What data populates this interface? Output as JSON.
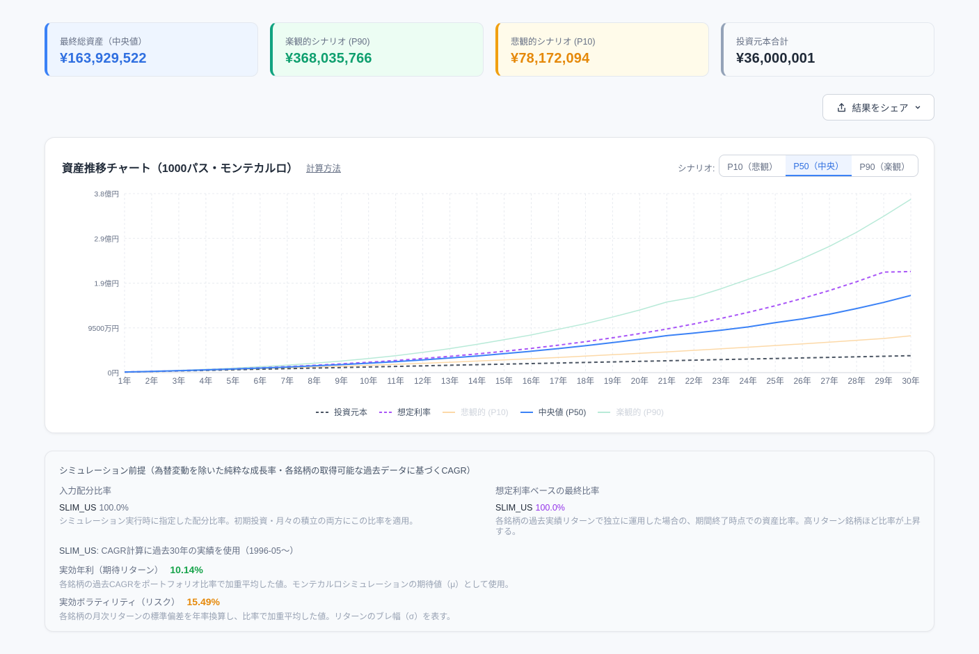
{
  "stats": [
    {
      "label": "最終総資産（中央値）",
      "value": "¥163,929,522",
      "kind": "median"
    },
    {
      "label": "楽観的シナリオ (P90)",
      "value": "¥368,035,766",
      "kind": "opt"
    },
    {
      "label": "悲観的シナリオ (P10)",
      "value": "¥78,172,094",
      "kind": "pes"
    },
    {
      "label": "投資元本合計",
      "value": "¥36,000,001",
      "kind": "total"
    }
  ],
  "share_button": {
    "label": "結果をシェア",
    "icon": "share-upload-icon",
    "chevron": "chevron-down-icon"
  },
  "chart": {
    "title": "資産推移チャート（1000パス・モンテカルロ）",
    "calc_link": "計算方法",
    "scenario_label": "シナリオ:",
    "scenario_options": [
      "P10（悲観）",
      "P50（中央）",
      "P90（楽観）"
    ],
    "scenario_selected": "P50（中央）"
  },
  "chart_data": {
    "type": "line",
    "x": [
      "1年",
      "2年",
      "3年",
      "4年",
      "5年",
      "6年",
      "7年",
      "8年",
      "9年",
      "10年",
      "11年",
      "12年",
      "13年",
      "14年",
      "15年",
      "16年",
      "17年",
      "18年",
      "19年",
      "20年",
      "21年",
      "22年",
      "23年",
      "24年",
      "25年",
      "26年",
      "27年",
      "28年",
      "29年",
      "30年"
    ],
    "y_ticks": [
      "0円",
      "9500万円",
      "1.9億円",
      "2.9億円",
      "3.8億円"
    ],
    "y_tick_values": [
      0,
      95000000,
      190000000,
      285000000,
      380000000
    ],
    "ylim": [
      0,
      380000000
    ],
    "grid": true,
    "legend_placement": "bottom",
    "series": [
      {
        "name": "投資元本",
        "color": "#4b5563",
        "dash": true,
        "dim": false,
        "values": [
          1.2,
          2.4,
          3.6,
          4.8,
          6.0,
          7.2,
          8.4,
          9.6,
          10.8,
          12.0,
          13.2,
          14.4,
          15.6,
          16.8,
          18.0,
          19.2,
          20.4,
          21.6,
          22.8,
          24.0,
          25.2,
          26.4,
          27.6,
          28.8,
          30.0,
          31.2,
          32.4,
          33.6,
          34.8,
          36.0
        ]
      },
      {
        "name": "想定利率",
        "color": "#a855f7",
        "dash": true,
        "dim": false,
        "values": [
          1.3,
          2.6,
          4.2,
          6.0,
          8.0,
          10.2,
          12.7,
          15.5,
          18.6,
          22.0,
          25.8,
          30.0,
          34.6,
          39.7,
          45.3,
          51.5,
          58.3,
          65.7,
          73.9,
          82.8,
          92.6,
          103.3,
          115.0,
          127.9,
          142.0,
          157.5,
          174.4,
          193.0,
          213.3,
          214.5
        ]
      },
      {
        "name": "悲観的 (P10)",
        "color": "#fcd9a8",
        "dash": false,
        "dim": true,
        "values": [
          1.2,
          2.3,
          3.6,
          5.0,
          6.5,
          8.1,
          9.8,
          11.6,
          13.5,
          15.5,
          17.6,
          19.8,
          22.1,
          24.5,
          27.0,
          29.6,
          32.3,
          35.1,
          38.0,
          41.0,
          44.1,
          47.3,
          50.6,
          54.0,
          57.5,
          61.1,
          64.8,
          68.6,
          72.5,
          78.2
        ]
      },
      {
        "name": "中央値 (P50)",
        "color": "#3b82f6",
        "dash": false,
        "dim": false,
        "values": [
          1.3,
          2.6,
          4.1,
          5.8,
          7.6,
          9.6,
          11.8,
          14.3,
          17.0,
          20.0,
          23.3,
          27.0,
          31.0,
          35.4,
          40.2,
          45.4,
          51.0,
          57.1,
          63.7,
          70.8,
          78.5,
          84.0,
          90.0,
          97.0,
          106.0,
          114.0,
          124.0,
          136.0,
          149.0,
          163.9
        ]
      },
      {
        "name": "楽観的 (P90)",
        "color": "#b8ead8",
        "dash": false,
        "dim": true,
        "values": [
          1.4,
          3.0,
          4.8,
          7.0,
          9.5,
          12.5,
          16.0,
          20.0,
          24.5,
          30.0,
          36.0,
          43.0,
          51.0,
          60.0,
          70.0,
          80.0,
          92.0,
          104.0,
          118.0,
          133.0,
          150.0,
          160.0,
          178.0,
          198.0,
          218.0,
          242.0,
          268.0,
          298.0,
          332.0,
          368.0
        ]
      }
    ],
    "value_unit_in_series": "百万円"
  },
  "info": {
    "title": "シミュレーション前提（為替変動を除いた純粋な成長率・各銘柄の取得可能な過去データに基づくCAGR）",
    "left": {
      "heading": "入力配分比率",
      "name": "SLIM_US",
      "pct": "100.0%",
      "desc": "シミュレーション実行時に指定した配分比率。初期投資・月々の積立の両方にこの比率を適用。"
    },
    "right": {
      "heading": "想定利率ベースの最終比率",
      "name": "SLIM_US",
      "pct": "100.0%",
      "desc": "各銘柄の過去実績リターンで独立に運用した場合の、期間終了時点での資産比率。高リターン銘柄ほど比率が上昇する。"
    },
    "cagr_name": "SLIM_US",
    "cagr_note": ": CAGR計算に過去30年の実績を使用（1996-05〜）",
    "return_label": "実効年利（期待リターン）",
    "return_value": "10.14%",
    "return_desc": "各銘柄の過去CAGRをポートフォリオ比率で加重平均した値。モンテカルロシミュレーションの期待値（μ）として使用。",
    "vol_label": "実効ボラティリティ（リスク）",
    "vol_value": "15.49%",
    "vol_desc": "各銘柄の月次リターンの標準偏差を年率換算し、比率で加重平均した値。リターンのブレ幅（σ）を表す。"
  }
}
